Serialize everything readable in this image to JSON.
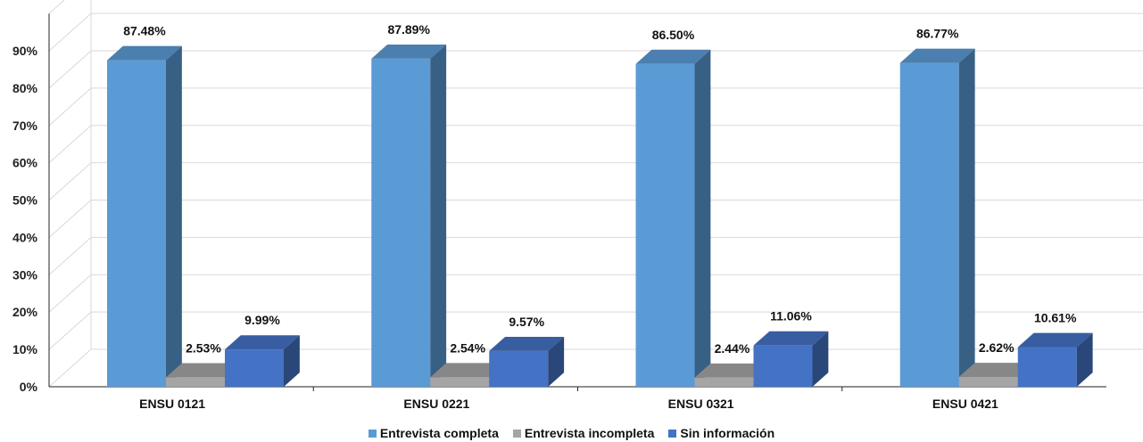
{
  "chart_data": {
    "type": "bar",
    "categories": [
      "ENSU 0121",
      "ENSU 0221",
      "ENSU 0321",
      "ENSU 0421"
    ],
    "series": [
      {
        "name": "Entrevista completa",
        "values": [
          87.48,
          87.89,
          86.5,
          86.77
        ],
        "labels": [
          "87.48%",
          "87.89%",
          "86.50%",
          "86.77%"
        ],
        "color": "#5b9bd5"
      },
      {
        "name": "Entrevista incompleta",
        "values": [
          2.53,
          2.54,
          2.44,
          2.62
        ],
        "labels": [
          "2.53%",
          "2.54%",
          "2.44%",
          "2.62%"
        ],
        "color": "#a5a5a5"
      },
      {
        "name": "Sin información",
        "values": [
          9.99,
          9.57,
          11.06,
          10.61
        ],
        "labels": [
          "9.99%",
          "9.57%",
          "11.06%",
          "10.61%"
        ],
        "color": "#4472c4"
      }
    ],
    "yticks": [
      "0%",
      "10%",
      "20%",
      "30%",
      "40%",
      "50%",
      "60%",
      "70%",
      "80%",
      "90%"
    ],
    "ylim": [
      0,
      100
    ],
    "grid": true,
    "legend_position": "bottom",
    "three_d": true
  }
}
